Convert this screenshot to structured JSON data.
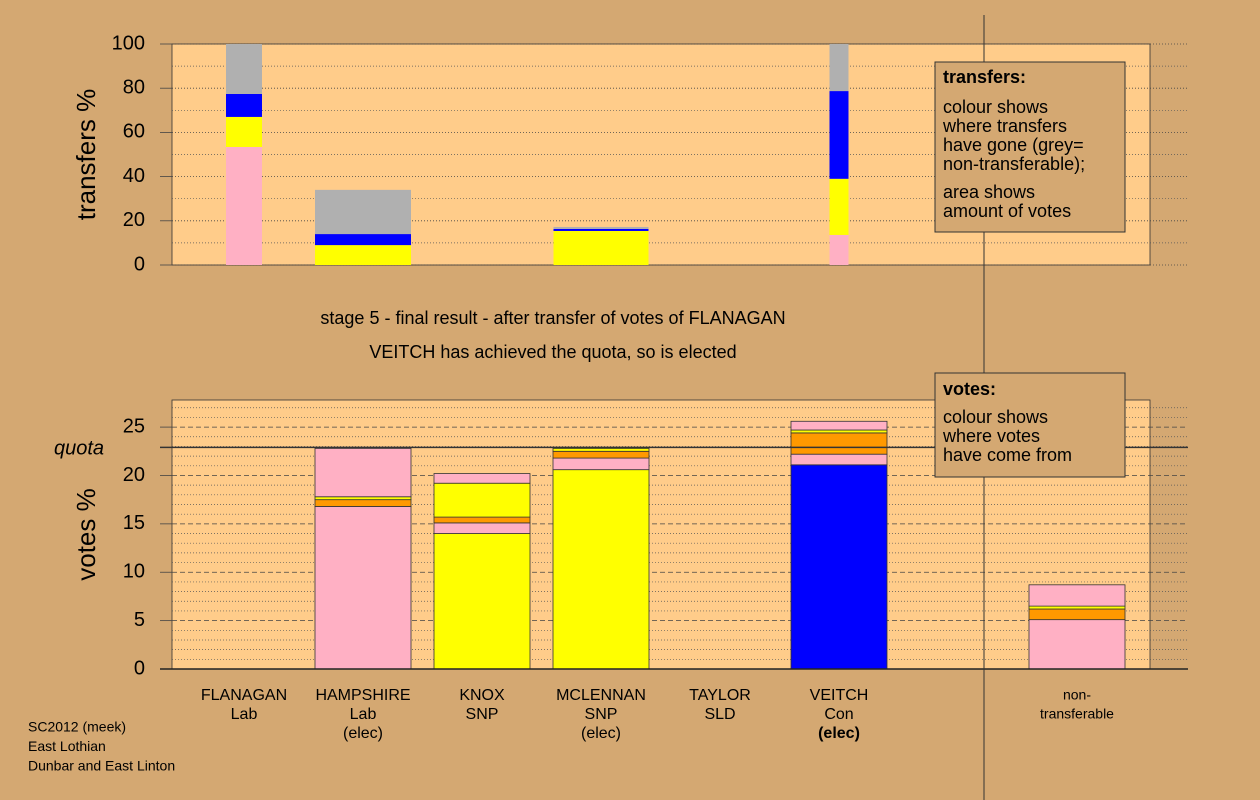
{
  "chart_data": [
    {
      "type": "bar",
      "stacked": true,
      "y_label": "transfers %",
      "ylim": [
        0,
        100
      ],
      "yticks": [
        0,
        20,
        40,
        60,
        80,
        100
      ],
      "minor_yticks": [
        10,
        30,
        50,
        70,
        90
      ],
      "series": [
        {
          "color": "#ffb0c4",
          "values": [
            53.4,
            null,
            null,
            null,
            null,
            13.6,
            null
          ]
        },
        {
          "color": "#ffff00",
          "values": [
            13.6,
            9,
            null,
            15.4,
            null,
            25.4,
            null
          ]
        },
        {
          "color": "#0000ff",
          "values": [
            10.4,
            5,
            null,
            0.9,
            null,
            39.7,
            null
          ]
        },
        {
          "color": "#b0b0b0",
          "values": [
            22.6,
            20,
            null,
            0.9,
            null,
            21.3,
            null
          ]
        }
      ],
      "note": {
        "heading": "transfers:",
        "paragraphs": [
          [
            "colour shows",
            "where transfers",
            "have gone (grey=",
            "non-transferable);"
          ],
          [
            "area shows",
            "amount of votes"
          ]
        ]
      }
    },
    {
      "type": "bar",
      "stacked": true,
      "y_label": "votes %",
      "title": "stage 5 - final result - after transfer of votes of FLANAGAN",
      "subtitle": "VEITCH has achieved the quota, so is elected",
      "categories": [
        [
          "FLANAGAN",
          "Lab"
        ],
        [
          "HAMPSHIRE",
          "Lab",
          "(elec)"
        ],
        [
          "KNOX",
          "SNP"
        ],
        [
          "MCLENNAN",
          "SNP",
          "(elec)"
        ],
        [
          "TAYLOR",
          "SLD"
        ],
        [
          "VEITCH",
          "Con",
          "(elec)"
        ],
        [
          "non-",
          "transferable"
        ]
      ],
      "ylim": [
        0,
        27.8
      ],
      "yticks": [
        0,
        5,
        10,
        15,
        20,
        25
      ],
      "minor_yticks": [
        1,
        2,
        3,
        4,
        6,
        7,
        8,
        9,
        11,
        12,
        13,
        14,
        16,
        17,
        18,
        19,
        21,
        22,
        23,
        24,
        26,
        27
      ],
      "quota": {
        "label": "quota",
        "value": 22.9
      },
      "series": [
        {
          "color": "#ffb0c4",
          "values": [
            null,
            16.8,
            null,
            null,
            null,
            null,
            5.1
          ]
        },
        {
          "color": "#ffff00",
          "values": [
            null,
            null,
            14.0,
            20.6,
            null,
            null,
            null
          ]
        },
        {
          "color": "#0000ff",
          "values": [
            null,
            null,
            null,
            null,
            null,
            21.1,
            null
          ]
        },
        {
          "color": "#ffb0c4",
          "values": [
            null,
            null,
            1.1,
            1.2,
            null,
            1.1,
            null
          ]
        },
        {
          "color": "#ff9900",
          "values": [
            null,
            0.7,
            0.6,
            0.7,
            null,
            2.2,
            1.1
          ]
        },
        {
          "color": "#ffff00",
          "values": [
            null,
            0.3,
            3.5,
            0.3,
            null,
            0.3,
            0.3
          ]
        },
        {
          "color": "#ffb0c4",
          "values": [
            null,
            5.0,
            1.0,
            null,
            null,
            0.9,
            2.2
          ]
        }
      ],
      "note": {
        "heading": "votes:",
        "paragraphs": [
          [
            "colour shows",
            "where votes",
            "have come from"
          ]
        ]
      }
    }
  ],
  "footer": [
    "SC2012 (meek)",
    "East Lothian",
    "Dunbar and East Linton"
  ]
}
